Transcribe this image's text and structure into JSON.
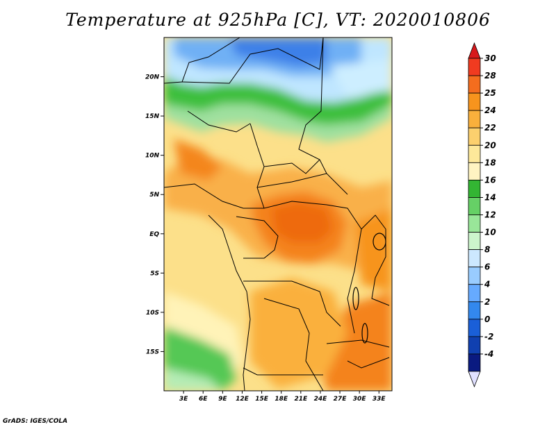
{
  "title": "Temperature at 925hPa [C], VT: 2020010806",
  "credit": "GrADS: IGES/COLA",
  "map": {
    "lat_ticks": [
      "20N",
      "15N",
      "10N",
      "5N",
      "EQ",
      "5S",
      "10S",
      "15S"
    ],
    "lat_values": [
      20,
      15,
      10,
      5,
      0,
      -5,
      -10,
      -15
    ],
    "lon_ticks": [
      "3E",
      "6E",
      "9E",
      "12E",
      "15E",
      "18E",
      "21E",
      "24E",
      "27E",
      "30E",
      "33E"
    ],
    "lon_values": [
      3,
      6,
      9,
      12,
      15,
      18,
      21,
      24,
      27,
      30,
      33
    ],
    "lon_range": [
      0,
      35
    ],
    "lat_range": [
      -20,
      25
    ]
  },
  "colorbar": {
    "levels": [
      "30",
      "28",
      "25",
      "24",
      "22",
      "20",
      "18",
      "16",
      "14",
      "12",
      "10",
      "8",
      "6",
      "4",
      "2",
      "0",
      "-2",
      "-4"
    ],
    "colors_top_to_bottom": [
      "#d7191c",
      "#f03b20",
      "#f46d1e",
      "#f7941d",
      "#fab03c",
      "#fcd06e",
      "#fde89a",
      "#fff4c2",
      "#33b533",
      "#66d066",
      "#99e699",
      "#ccf5cc",
      "#cce8ff",
      "#99ccff",
      "#66aaff",
      "#3388ee",
      "#1a5fd8",
      "#1040b0",
      "#0a1a80",
      "#e0e0ff"
    ]
  }
}
